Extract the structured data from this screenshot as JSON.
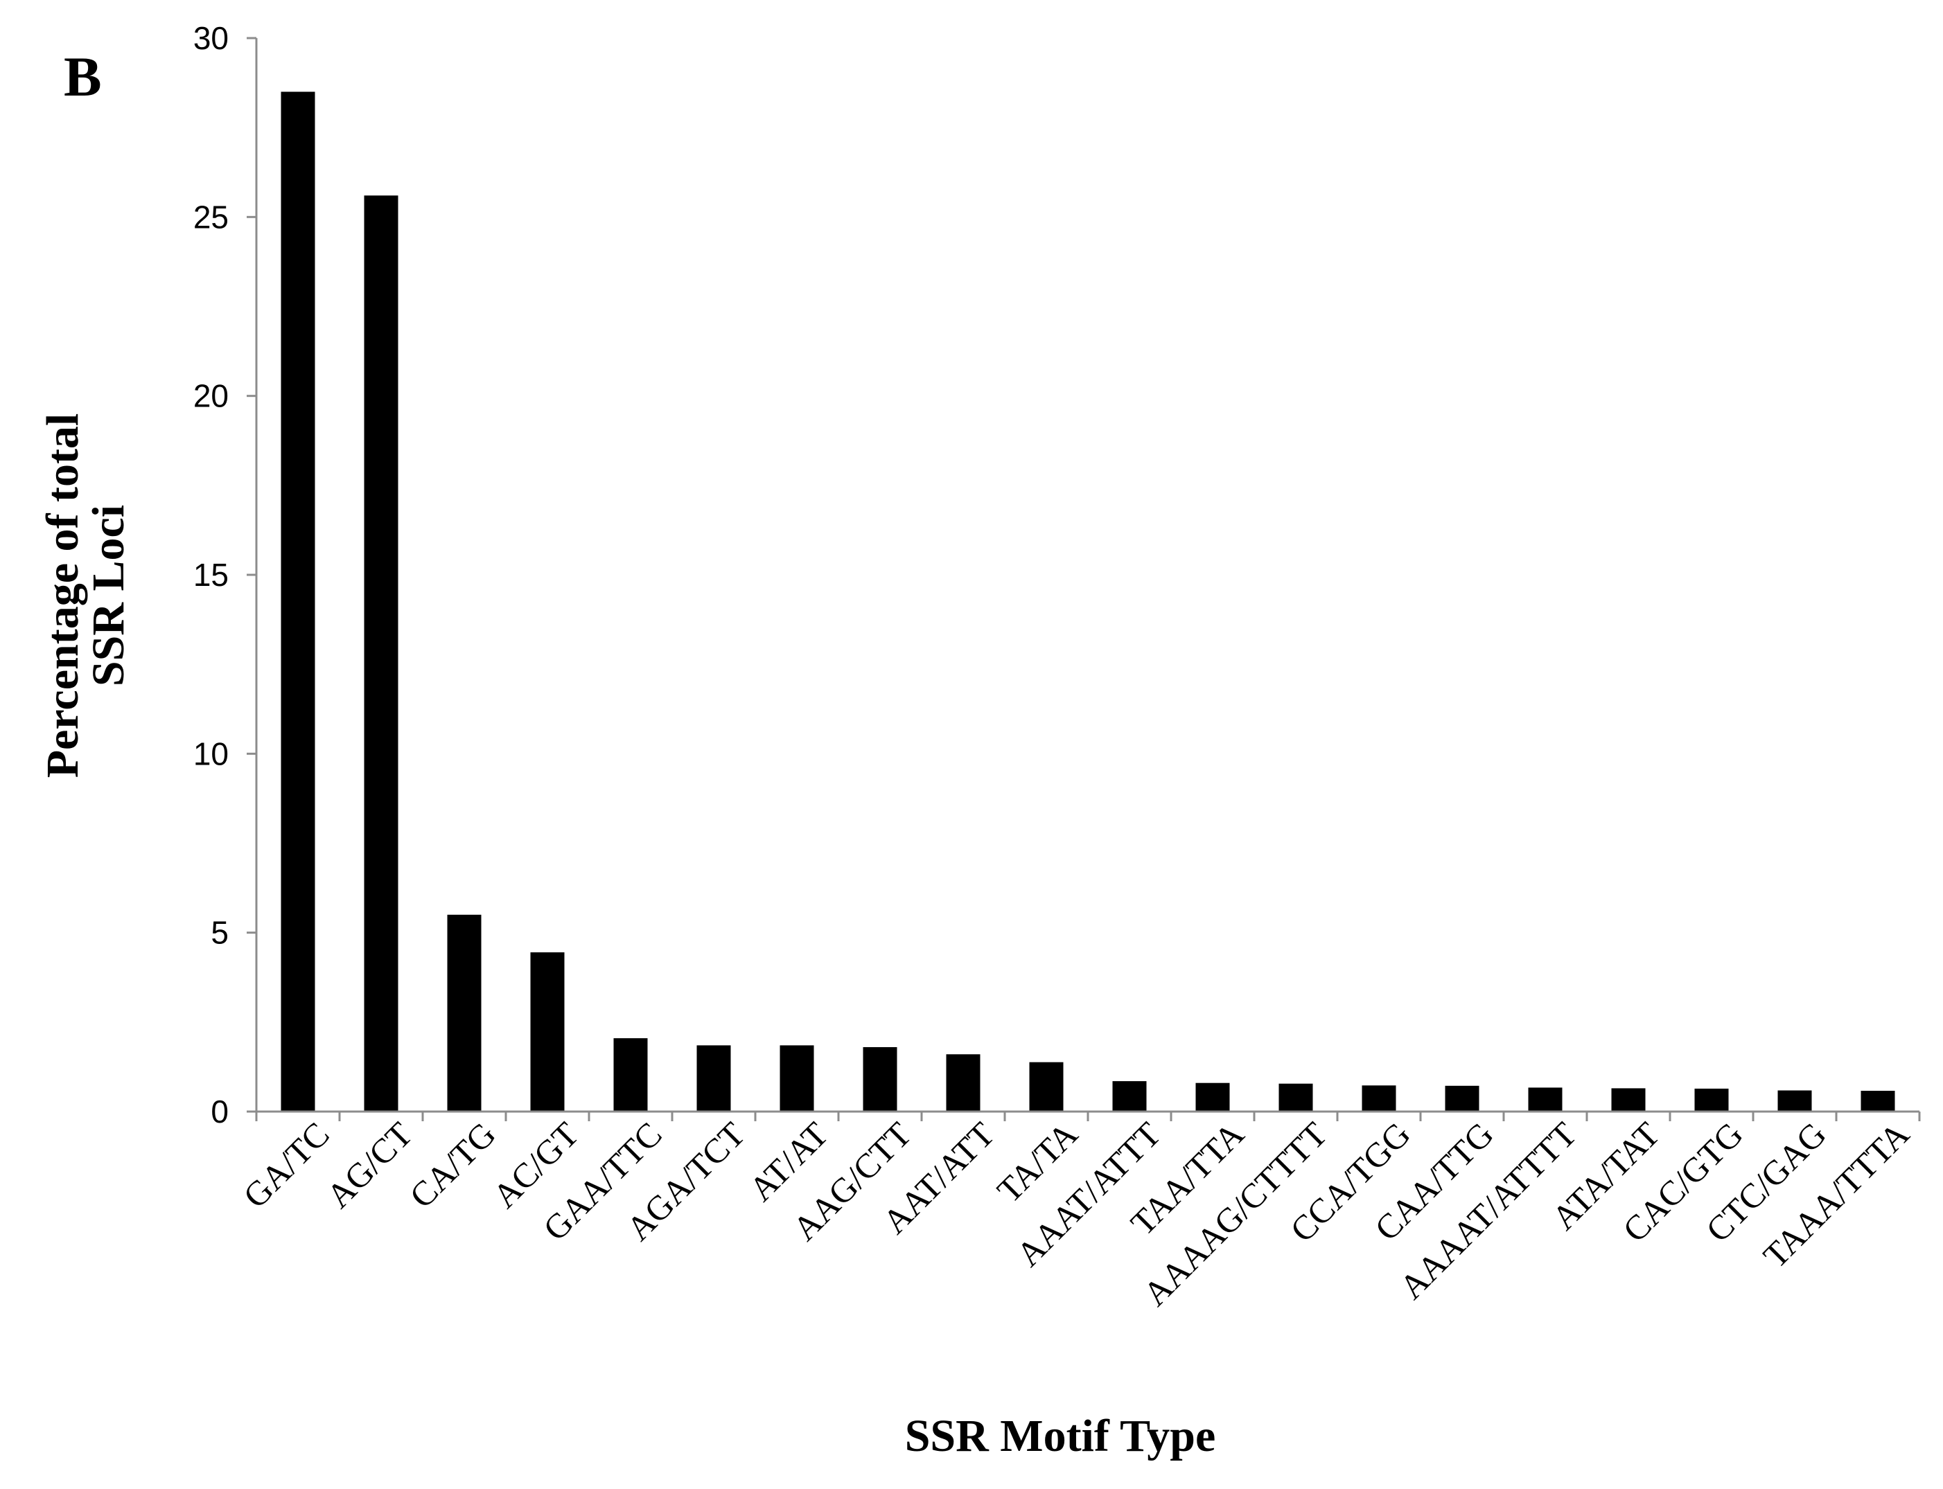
{
  "chart_data": {
    "type": "bar",
    "panel_label": "B",
    "categories": [
      "GA/TC",
      "AG/CT",
      "CA/TG",
      "AC/GT",
      "GAA/TTC",
      "AGA/TCT",
      "AT/AT",
      "AAG/CTT",
      "AAT/ATT",
      "TA/TA",
      "AAAT/ATTT",
      "TAA/TTA",
      "AAAAG/CTTTT",
      "CCA/TGG",
      "CAA/TTG",
      "AAAAT/ATTTT",
      "ATA/TAT",
      "CAC/GTG",
      "CTC/GAG",
      "TAAA/TTTA"
    ],
    "values": [
      28.5,
      25.6,
      5.5,
      4.45,
      2.05,
      1.85,
      1.85,
      1.8,
      1.6,
      1.38,
      0.85,
      0.8,
      0.78,
      0.73,
      0.72,
      0.67,
      0.65,
      0.64,
      0.59,
      0.58
    ],
    "ylim": [
      0,
      30
    ],
    "yticks": [
      "0",
      "5",
      "10",
      "15",
      "20",
      "25",
      "30"
    ],
    "ylabel": [
      "Percentage of total",
      "SSR Loci"
    ],
    "xlabel": "SSR Motif Type",
    "bar_color": "#000000",
    "axis_color": "#8c8c8c",
    "grid": false,
    "legend": "none"
  }
}
